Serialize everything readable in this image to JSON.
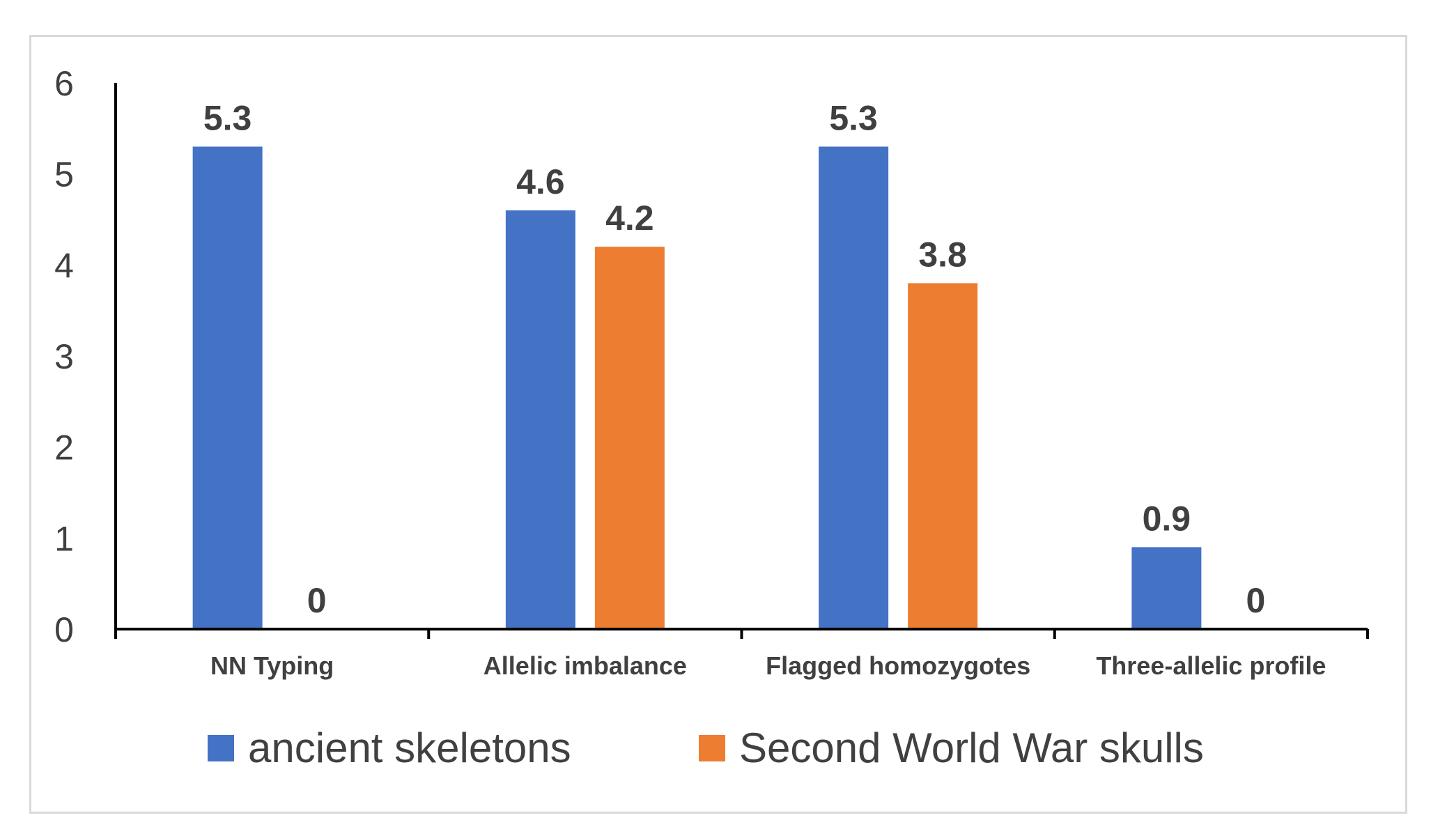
{
  "chart_data": {
    "type": "bar",
    "title": "",
    "xlabel": "",
    "ylabel": "",
    "categories": [
      "NN Typing",
      "Allelic imbalance",
      "Flagged homozygotes",
      "Three-allelic profile"
    ],
    "series": [
      {
        "name": "ancient skeletons",
        "color": "#4472C4",
        "values": [
          5.3,
          4.6,
          5.3,
          0.9
        ]
      },
      {
        "name": "Second World War skulls",
        "color": "#ED7D31",
        "values": [
          0,
          4.2,
          3.8,
          0
        ]
      }
    ],
    "ylim": [
      0,
      6
    ],
    "yticks": [
      "0",
      "1",
      "2",
      "3",
      "4",
      "5",
      "6"
    ],
    "data_labels": true,
    "grid": false,
    "legend": "bottom"
  }
}
